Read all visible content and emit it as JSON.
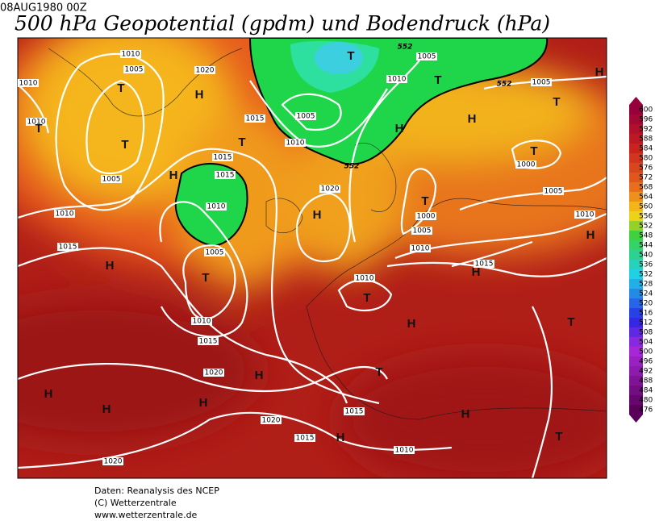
{
  "header": {
    "date": "08AUG1980 00Z",
    "title": "500 hPa Geopotential (gpdm) und Bodendruck (hPa)"
  },
  "legend": {
    "labels": [
      "600",
      "596",
      "592",
      "588",
      "584",
      "580",
      "576",
      "572",
      "568",
      "564",
      "560",
      "556",
      "552",
      "548",
      "544",
      "540",
      "536",
      "532",
      "528",
      "524",
      "520",
      "516",
      "512",
      "508",
      "504",
      "500",
      "496",
      "492",
      "488",
      "484",
      "480",
      "476"
    ]
  },
  "contour_labels": [
    "1010",
    "1005",
    "1020",
    "1010",
    "1010",
    "1015",
    "1005",
    "1010",
    "1015",
    "1015",
    "1005",
    "1020",
    "1010",
    "1010",
    "1015",
    "1005",
    "1010",
    "1010",
    "1015",
    "1020",
    "1020",
    "1015",
    "1015",
    "1010",
    "1020",
    "1005",
    "1010",
    "1005",
    "1000",
    "1005",
    "1010",
    "1000",
    "1005",
    "1010",
    "1015",
    "552",
    "552",
    "552"
  ],
  "centers": [
    "T",
    "T",
    "H",
    "T",
    "H",
    "T",
    "H",
    "T",
    "T",
    "T",
    "H",
    "T",
    "H",
    "T",
    "H",
    "H",
    "T",
    "H",
    "H",
    "T",
    "H",
    "T",
    "T",
    "H",
    "H",
    "H",
    "H",
    "H",
    "H",
    "T"
  ],
  "footer": [
    "Daten: Reanalysis des NCEP",
    "(C) Wetterzentrale",
    "www.wetterzentrale.de"
  ]
}
